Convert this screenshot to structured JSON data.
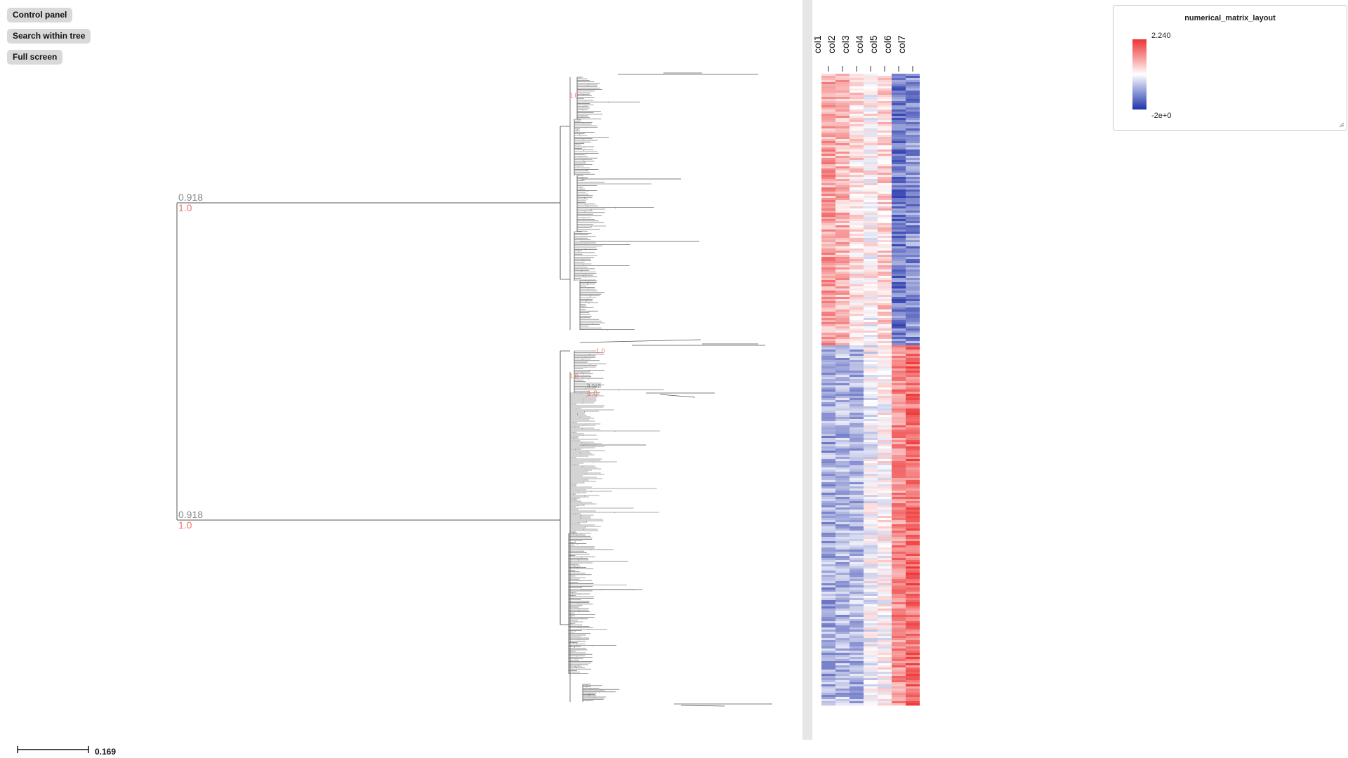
{
  "toolbar": {
    "control_panel_label": "Control panel",
    "search_label": "Search within tree",
    "fullscreen_label": "Full screen"
  },
  "tree": {
    "support_labels": {
      "clade_top_gray": "0.918",
      "clade_top_red": "1.0",
      "clade_bottom_gray": "0.918",
      "clade_bottom_red": "1.0",
      "small_node_1": "1.0",
      "small_node_2": "1.0",
      "small_node_3": "1.0",
      "small_node_4_gray": "0.948",
      "small_node_4_red": "1.0"
    },
    "branch_color": "#555555",
    "gray_label_color": "#888888",
    "red_label_color": "#ee7766"
  },
  "scale": {
    "label": "0.169"
  },
  "heatmap": {
    "columns": [
      "col1",
      "col2",
      "col3",
      "col4",
      "col5",
      "col6",
      "col7"
    ],
    "high_color": "#ee3333",
    "mid_color": "#ffffff",
    "low_color": "#2233aa"
  },
  "legend": {
    "title": "numerical_matrix_layout",
    "max_label": "2.240",
    "min_label": "-2e+0"
  }
}
